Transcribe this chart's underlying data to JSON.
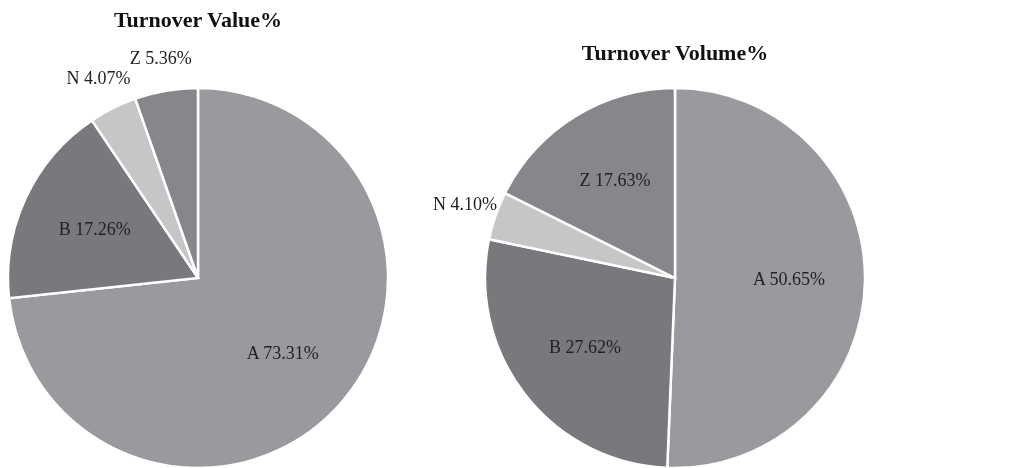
{
  "chart_data": [
    {
      "type": "pie",
      "title": "Turnover Value%",
      "categories": [
        "A",
        "B",
        "N",
        "Z"
      ],
      "values": [
        73.31,
        17.26,
        4.07,
        5.36
      ],
      "colors": [
        "#9a9a9e",
        "#79797d",
        "#c6c6c8",
        "#87878b"
      ],
      "value_labels": [
        "73.31%",
        "17.26%",
        "4.07%",
        "5.36%"
      ],
      "legend": false
    },
    {
      "type": "pie",
      "title": "Turnover Volume%",
      "categories": [
        "A",
        "B",
        "N",
        "Z"
      ],
      "values": [
        50.65,
        27.62,
        4.1,
        17.63
      ],
      "colors": [
        "#9a9a9e",
        "#79797d",
        "#c6c6c8",
        "#87878b"
      ],
      "value_labels": [
        "50.65%",
        "27.62%",
        "4.10%",
        "17.63%"
      ],
      "legend": false
    }
  ]
}
